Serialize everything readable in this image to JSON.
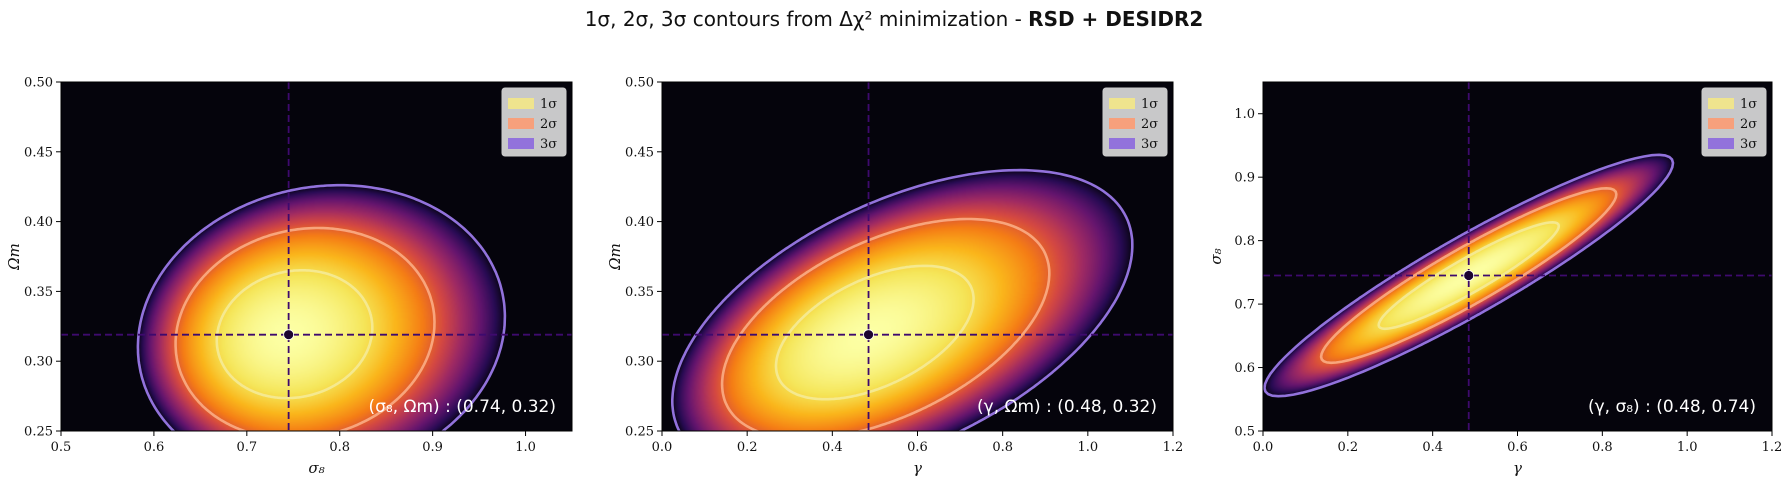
{
  "figure": {
    "title_prefix": "1σ, 2σ, 3σ contours from Δχ² minimization - ",
    "title_bold": "RSD + DESIDR2"
  },
  "colors": {
    "background": "#05040c",
    "contour_1sigma": "#f5e98f",
    "contour_2sigma": "#f8a57c",
    "contour_3sigma": "#9272dc",
    "bestfit_line": "#3e0a6e",
    "bestfit_marker": "#1c0530",
    "colormap": "inferno"
  },
  "legend": {
    "placement": "top-right",
    "entries": [
      {
        "label": "1σ",
        "color": "#efe48e"
      },
      {
        "label": "2σ",
        "color": "#f7a07c"
      },
      {
        "label": "3σ",
        "color": "#9272dc"
      }
    ]
  },
  "chart_data": [
    {
      "type": "contour",
      "xlabel": "σ₈",
      "ylabel": "Ωm",
      "xlim": [
        0.5,
        1.05
      ],
      "ylim": [
        0.25,
        0.5
      ],
      "xticks": [
        "0.5",
        "0.6",
        "0.7",
        "0.8",
        "0.9",
        "1.0"
      ],
      "xtick_values": [
        0.5,
        0.6,
        0.7,
        0.8,
        0.9,
        1.0
      ],
      "yticks": [
        "0.25",
        "0.30",
        "0.35",
        "0.40",
        "0.45",
        "0.50"
      ],
      "ytick_values": [
        0.25,
        0.3,
        0.35,
        0.4,
        0.45,
        0.5
      ],
      "best_fit": {
        "x": 0.745,
        "y": 0.319
      },
      "annotation": "(σ₈, Ωm) : (0.74, 0.32)",
      "ellipse": {
        "sx": 0.0547,
        "sy": 0.0301,
        "rho": 0.1,
        "skew": 0.3
      },
      "contours": [
        {
          "level": "1σ",
          "delta_chi2": 2.3
        },
        {
          "level": "2σ",
          "delta_chi2": 6.18
        },
        {
          "level": "3σ",
          "delta_chi2": 11.83
        }
      ]
    },
    {
      "type": "contour",
      "xlabel": "γ",
      "ylabel": "Ωm",
      "xlim": [
        0.0,
        1.2
      ],
      "ylim": [
        0.25,
        0.5
      ],
      "xticks": [
        "0.0",
        "0.2",
        "0.4",
        "0.6",
        "0.8",
        "1.0",
        "1.2"
      ],
      "xtick_values": [
        0.0,
        0.2,
        0.4,
        0.6,
        0.8,
        1.0,
        1.2
      ],
      "yticks": [
        "0.25",
        "0.30",
        "0.35",
        "0.40",
        "0.45",
        "0.50"
      ],
      "ytick_values": [
        0.25,
        0.3,
        0.35,
        0.4,
        0.45,
        0.5
      ],
      "best_fit": {
        "x": 0.485,
        "y": 0.319
      },
      "annotation": "(γ, Ωm) : (0.48, 0.32)",
      "ellipse": {
        "sx": 0.152,
        "sy": 0.0314,
        "rho": 0.5,
        "skew": 0.25
      },
      "contours": [
        {
          "level": "1σ",
          "delta_chi2": 2.3
        },
        {
          "level": "2σ",
          "delta_chi2": 6.18
        },
        {
          "level": "3σ",
          "delta_chi2": 11.83
        }
      ]
    },
    {
      "type": "contour",
      "xlabel": "γ",
      "ylabel": "σ₈",
      "xlim": [
        0.0,
        1.2
      ],
      "ylim": [
        0.5,
        1.05
      ],
      "xticks": [
        "0.0",
        "0.2",
        "0.4",
        "0.6",
        "0.8",
        "1.0",
        "1.2"
      ],
      "xtick_values": [
        0.0,
        0.2,
        0.4,
        0.6,
        0.8,
        1.0,
        1.2
      ],
      "yticks": [
        "0.5",
        "0.6",
        "0.7",
        "0.8",
        "0.9",
        "1.0"
      ],
      "ytick_values": [
        0.5,
        0.6,
        0.7,
        0.8,
        0.9,
        1.0
      ],
      "best_fit": {
        "x": 0.485,
        "y": 0.745
      },
      "annotation": "(γ, σ₈) : (0.48, 0.74)",
      "ellipse": {
        "sx": 0.14,
        "sy": 0.0553,
        "rho": 0.93,
        "skew": 0.0
      },
      "contours": [
        {
          "level": "1σ",
          "delta_chi2": 2.3
        },
        {
          "level": "2σ",
          "delta_chi2": 6.18
        },
        {
          "level": "3σ",
          "delta_chi2": 11.83
        }
      ]
    }
  ]
}
